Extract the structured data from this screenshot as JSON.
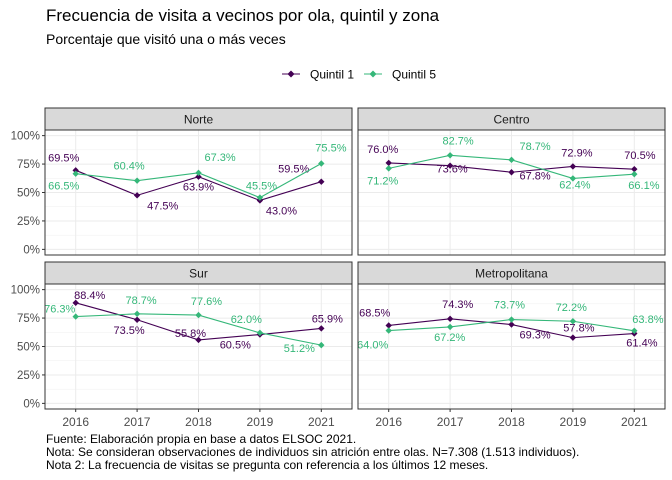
{
  "title": "Frecuencia de visita a vecinos por ola, quintil y zona",
  "subtitle": "Porcentaje que visitó una o más veces",
  "caption": [
    "Fuente: Elaboración propia en base a datos ELSOC 2021.",
    "Nota: Se consideran observaciones de individuos sin atrición entre olas. N=7.308 (1.513 individuos).",
    "Nota 2: La frecuencia de visitas se pregunta con referencia a los últimos 12 meses."
  ],
  "colors": {
    "Quintil 1": "#440154",
    "Quintil 5": "#35b779"
  },
  "chart_data": {
    "type": "line",
    "x": [
      "2016",
      "2017",
      "2018",
      "2019",
      "2021"
    ],
    "yticks": [
      "0%",
      "25%",
      "50%",
      "75%",
      "100%"
    ],
    "ylim": [
      0,
      100
    ],
    "legend": [
      "Quintil 1",
      "Quintil 5"
    ],
    "legend_position": "top",
    "grid": true,
    "panels": [
      {
        "name": "Norte",
        "series": [
          {
            "name": "Quintil 1",
            "values": [
              69.5,
              47.5,
              63.9,
              43.0,
              59.5
            ],
            "labels": [
              "69.5%",
              "47.5%",
              "63.9%",
              "43.0%",
              "59.5%"
            ]
          },
          {
            "name": "Quintil 5",
            "values": [
              66.5,
              60.4,
              67.3,
              45.5,
              75.5
            ],
            "labels": [
              "66.5%",
              "60.4%",
              "67.3%",
              "45.5%",
              "75.5%"
            ]
          }
        ]
      },
      {
        "name": "Centro",
        "series": [
          {
            "name": "Quintil 1",
            "values": [
              76.0,
              73.6,
              67.8,
              72.9,
              70.5
            ],
            "labels": [
              "76.0%",
              "73.6%",
              "67.8%",
              "72.9%",
              "70.5%"
            ]
          },
          {
            "name": "Quintil 5",
            "values": [
              71.2,
              82.7,
              78.7,
              62.4,
              66.1
            ],
            "labels": [
              "71.2%",
              "82.7%",
              "78.7%",
              "62.4%",
              "66.1%"
            ]
          }
        ]
      },
      {
        "name": "Sur",
        "series": [
          {
            "name": "Quintil 1",
            "values": [
              88.4,
              73.5,
              55.8,
              60.5,
              65.9
            ],
            "labels": [
              "88.4%",
              "73.5%",
              "55.8%",
              "60.5%",
              "65.9%"
            ]
          },
          {
            "name": "Quintil 5",
            "values": [
              76.3,
              78.7,
              77.6,
              62.0,
              51.2
            ],
            "labels": [
              "76.3%",
              "78.7%",
              "77.6%",
              "62.0%",
              "51.2%"
            ]
          }
        ]
      },
      {
        "name": "Metropolitana",
        "series": [
          {
            "name": "Quintil 1",
            "values": [
              68.5,
              74.3,
              69.3,
              57.8,
              61.4
            ],
            "labels": [
              "68.5%",
              "74.3%",
              "69.3%",
              "57.8%",
              "61.4%"
            ]
          },
          {
            "name": "Quintil 5",
            "values": [
              64.0,
              67.2,
              73.7,
              72.2,
              63.8
            ],
            "labels": [
              "64.0%",
              "67.2%",
              "73.7%",
              "72.2%",
              "63.8%"
            ]
          }
        ]
      }
    ]
  }
}
